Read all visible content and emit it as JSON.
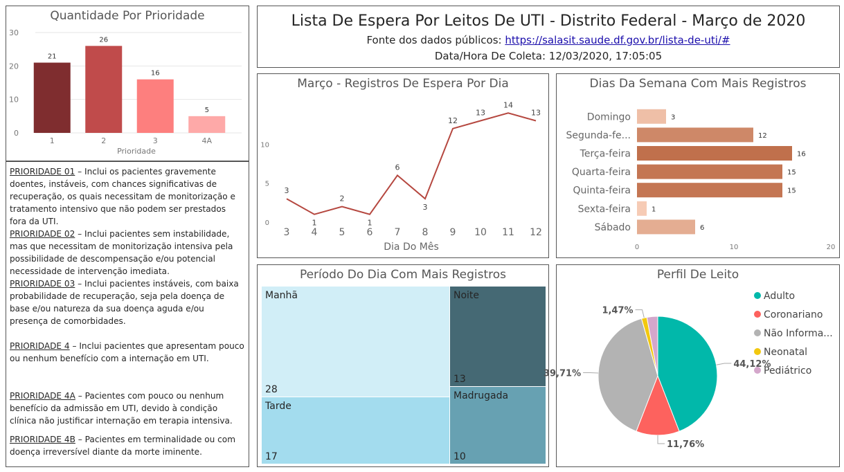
{
  "header": {
    "title": "Lista De Espera Por Leitos De UTI - Distrito Federal - Março de 2020",
    "source_label": "Fonte dos dados públicos: ",
    "source_link": "https://salasit.saude.df.gov.br/lista-de-uti/#",
    "collection_label": "Data/Hora De Coleta: 12/03/2020, 17:05:05"
  },
  "descriptions": [
    {
      "heading": "PRIORIDADE 01",
      "text": " – Inclui os pacientes gravemente doentes, instáveis, com chances significativas de recuperação, os quais necessitam de monitorização e tratamento intensivo que não podem ser prestados fora da UTI."
    },
    {
      "heading": "PRIORIDADE 02",
      "text": " – Inclui pacientes sem instabilidade, mas que necessitam de monitorização intensiva pela possibilidade de descompensação e/ou potencial necessidade de intervenção imediata."
    },
    {
      "heading": "PRIORIDADE 03",
      "text": " – Inclui pacientes instáveis, com baixa probabilidade de recuperação, seja pela doença de base e/ou natureza da sua doença aguda e/ou presença de comorbidades."
    },
    {
      "heading": "PRIORIDADE 4",
      "text": " – Inclui pacientes que apresentam pouco ou nenhum benefício com a internação em UTI."
    },
    {
      "heading": "PRIORIDADE 4A",
      "text": " – Pacientes com pouco ou nenhum benefício da admissão em UTI, devido à condição clínica não justificar internação em terapia intensiva."
    },
    {
      "heading": "PRIORIDADE 4B",
      "text": " – Pacientes em terminalidade ou com doença irreversível diante da morte iminente."
    }
  ],
  "chart_data": [
    {
      "id": "priority",
      "type": "bar",
      "title": "Quantidade Por Prioridade",
      "xlabel": "Prioridade",
      "ylabel": "",
      "categories": [
        "1",
        "2",
        "3",
        "4A"
      ],
      "values": [
        21,
        26,
        16,
        5
      ],
      "colors": [
        "#7f2d2f",
        "#c04b4b",
        "#fd7f7e",
        "#fea9a8"
      ],
      "ylim": [
        0,
        30
      ],
      "yticks": [
        "0",
        "10",
        "20",
        "30"
      ],
      "grid": true
    },
    {
      "id": "daily",
      "type": "line",
      "title": "Março - Registros De Espera Por Dia",
      "xlabel": "Dia Do Mês",
      "ylabel": "",
      "x": [
        3,
        4,
        5,
        6,
        7,
        8,
        9,
        10,
        11,
        12
      ],
      "values": [
        3,
        1,
        2,
        1,
        6,
        3,
        12,
        13,
        14,
        13
      ],
      "color": "#b5473f",
      "ylim": [
        0,
        15
      ],
      "yticks": [
        "0",
        "5",
        "10"
      ],
      "grid": false
    },
    {
      "id": "weekday",
      "type": "bar",
      "orientation": "horizontal",
      "title": "Dias Da Semana Com Mais Registros",
      "categories": [
        "Domingo",
        "Segunda-fe...",
        "Terça-feira",
        "Quarta-feira",
        "Quinta-feira",
        "Sexta-feira",
        "Sábado"
      ],
      "values": [
        3,
        12,
        16,
        15,
        15,
        1,
        6
      ],
      "color_low": "#f6cbb5",
      "color_high": "#c0704c",
      "xlim": [
        0,
        20
      ],
      "xticks": [
        "0",
        "10",
        "20"
      ]
    },
    {
      "id": "period",
      "type": "treemap",
      "title": "Período Do Dia Com Mais Registros",
      "categories": [
        "Manhã",
        "Tarde",
        "Noite",
        "Madrugada"
      ],
      "values": [
        28,
        17,
        13,
        10
      ],
      "colors": [
        "#d1eef7",
        "#a3dcee",
        "#456974",
        "#67a1b2"
      ]
    },
    {
      "id": "bedprofile",
      "type": "pie",
      "title": "Perfil De Leito",
      "categories": [
        "Adulto",
        "Coronariano",
        "Não Informa...",
        "Neonatal",
        "Pediátrico"
      ],
      "values": [
        44.12,
        11.76,
        39.71,
        1.47,
        2.94
      ],
      "labels": [
        "44,12%",
        "11,76%",
        "39,71%",
        "1,47%",
        ""
      ],
      "colors": [
        "#01b8aa",
        "#fd625e",
        "#b3b3b3",
        "#f2c80f",
        "#d4a7cb"
      ],
      "legend": "right"
    }
  ]
}
